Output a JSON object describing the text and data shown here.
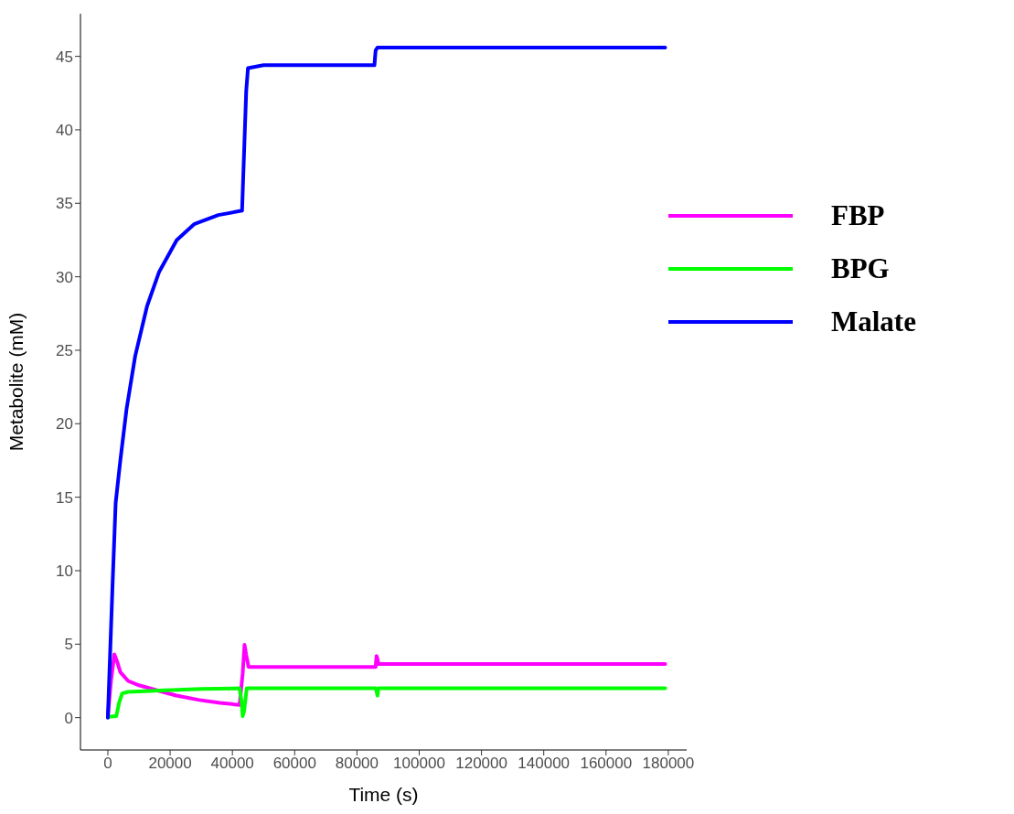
{
  "chart_data": {
    "type": "line",
    "xlabel": "Time (s)",
    "ylabel": "Metabolite (mM)",
    "xlim": [
      -8800,
      185900
    ],
    "xticks": [
      0,
      20000,
      40000,
      60000,
      80000,
      100000,
      120000,
      140000,
      160000,
      180000
    ],
    "ylim": [
      -2.2,
      47.9
    ],
    "yticks": [
      0,
      5,
      10,
      15,
      20,
      25,
      30,
      35,
      40,
      45
    ],
    "legend": "right",
    "marker": "none",
    "line_style": "solid",
    "series": [
      {
        "name": "FBP",
        "color": "#ff00ff",
        "x": [
          0,
          1000,
          2100,
          3000,
          4000,
          6500,
          10000,
          16800,
          22000,
          29400,
          36000,
          42300,
          43300,
          43900,
          44400,
          45200,
          60000,
          86000,
          86300,
          86600,
          86900,
          100000,
          179000
        ],
        "values": [
          0.1,
          2.5,
          4.3,
          3.8,
          3.1,
          2.5,
          2.2,
          1.8,
          1.5,
          1.2,
          1.0,
          0.87,
          3.0,
          4.96,
          4.3,
          3.45,
          3.45,
          3.45,
          4.2,
          4.0,
          3.65,
          3.65,
          3.65
        ]
      },
      {
        "name": "BPG",
        "color": "#00ff00",
        "x": [
          0,
          2700,
          3600,
          4600,
          6500,
          16600,
          30000,
          42300,
          43000,
          43300,
          43800,
          44600,
          60000,
          86000,
          86300,
          86600,
          86900,
          100000,
          179000
        ],
        "values": [
          0.05,
          0.1,
          1.0,
          1.65,
          1.75,
          1.85,
          1.95,
          2.0,
          1.0,
          0.1,
          0.5,
          2.0,
          2.0,
          2.0,
          1.8,
          1.5,
          2.0,
          2.0,
          2.0
        ]
      },
      {
        "name": "Malate",
        "color": "#0000ff",
        "x": [
          0,
          1500,
          2500,
          4000,
          6000,
          8770,
          12590,
          16400,
          22120,
          27840,
          35470,
          43100,
          44430,
          45000,
          50000,
          85620,
          86000,
          86600,
          90000,
          179000
        ],
        "values": [
          0,
          9,
          14.6,
          17.5,
          21,
          24.6,
          28,
          30.3,
          32.5,
          33.6,
          34.2,
          34.5,
          42.6,
          44.2,
          44.4,
          44.4,
          45.4,
          45.6,
          45.6,
          45.6
        ]
      }
    ]
  }
}
